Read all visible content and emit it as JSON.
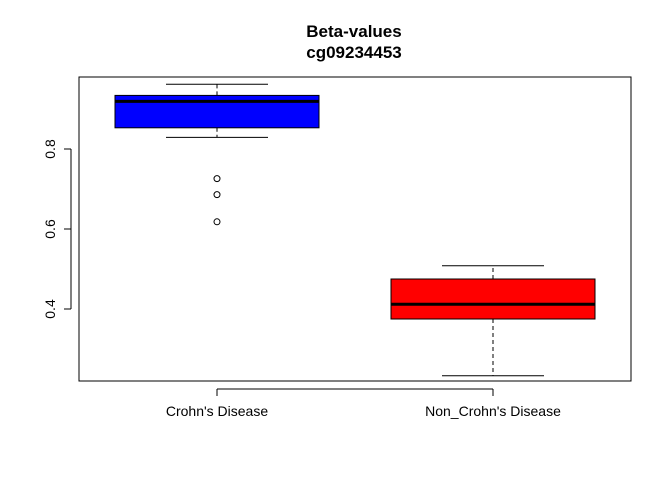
{
  "chart_data": {
    "type": "boxplot",
    "title": "Beta-values",
    "subtitle": "cg09234453",
    "xlabel": "",
    "ylabel": "",
    "ylim": [
      0.22,
      0.98
    ],
    "yticks": [
      0.4,
      0.6,
      0.8
    ],
    "ytick_labels": [
      "0.4",
      "0.6",
      "0.8"
    ],
    "grid": false,
    "legend": "none",
    "categories": [
      "Crohn's Disease",
      "Non_Crohn's Disease"
    ],
    "boxes": [
      {
        "name": "Crohn's Disease",
        "color": "#0000FF",
        "whisker_low": 0.829,
        "q1": 0.853,
        "median": 0.919,
        "q3": 0.934,
        "whisker_high": 0.962,
        "outliers": [
          0.726,
          0.686,
          0.618
        ]
      },
      {
        "name": "Non_Crohn's Disease",
        "color": "#FF0000",
        "whisker_low": 0.233,
        "q1": 0.375,
        "median": 0.412,
        "q3": 0.475,
        "whisker_high": 0.508,
        "outliers": []
      }
    ]
  }
}
